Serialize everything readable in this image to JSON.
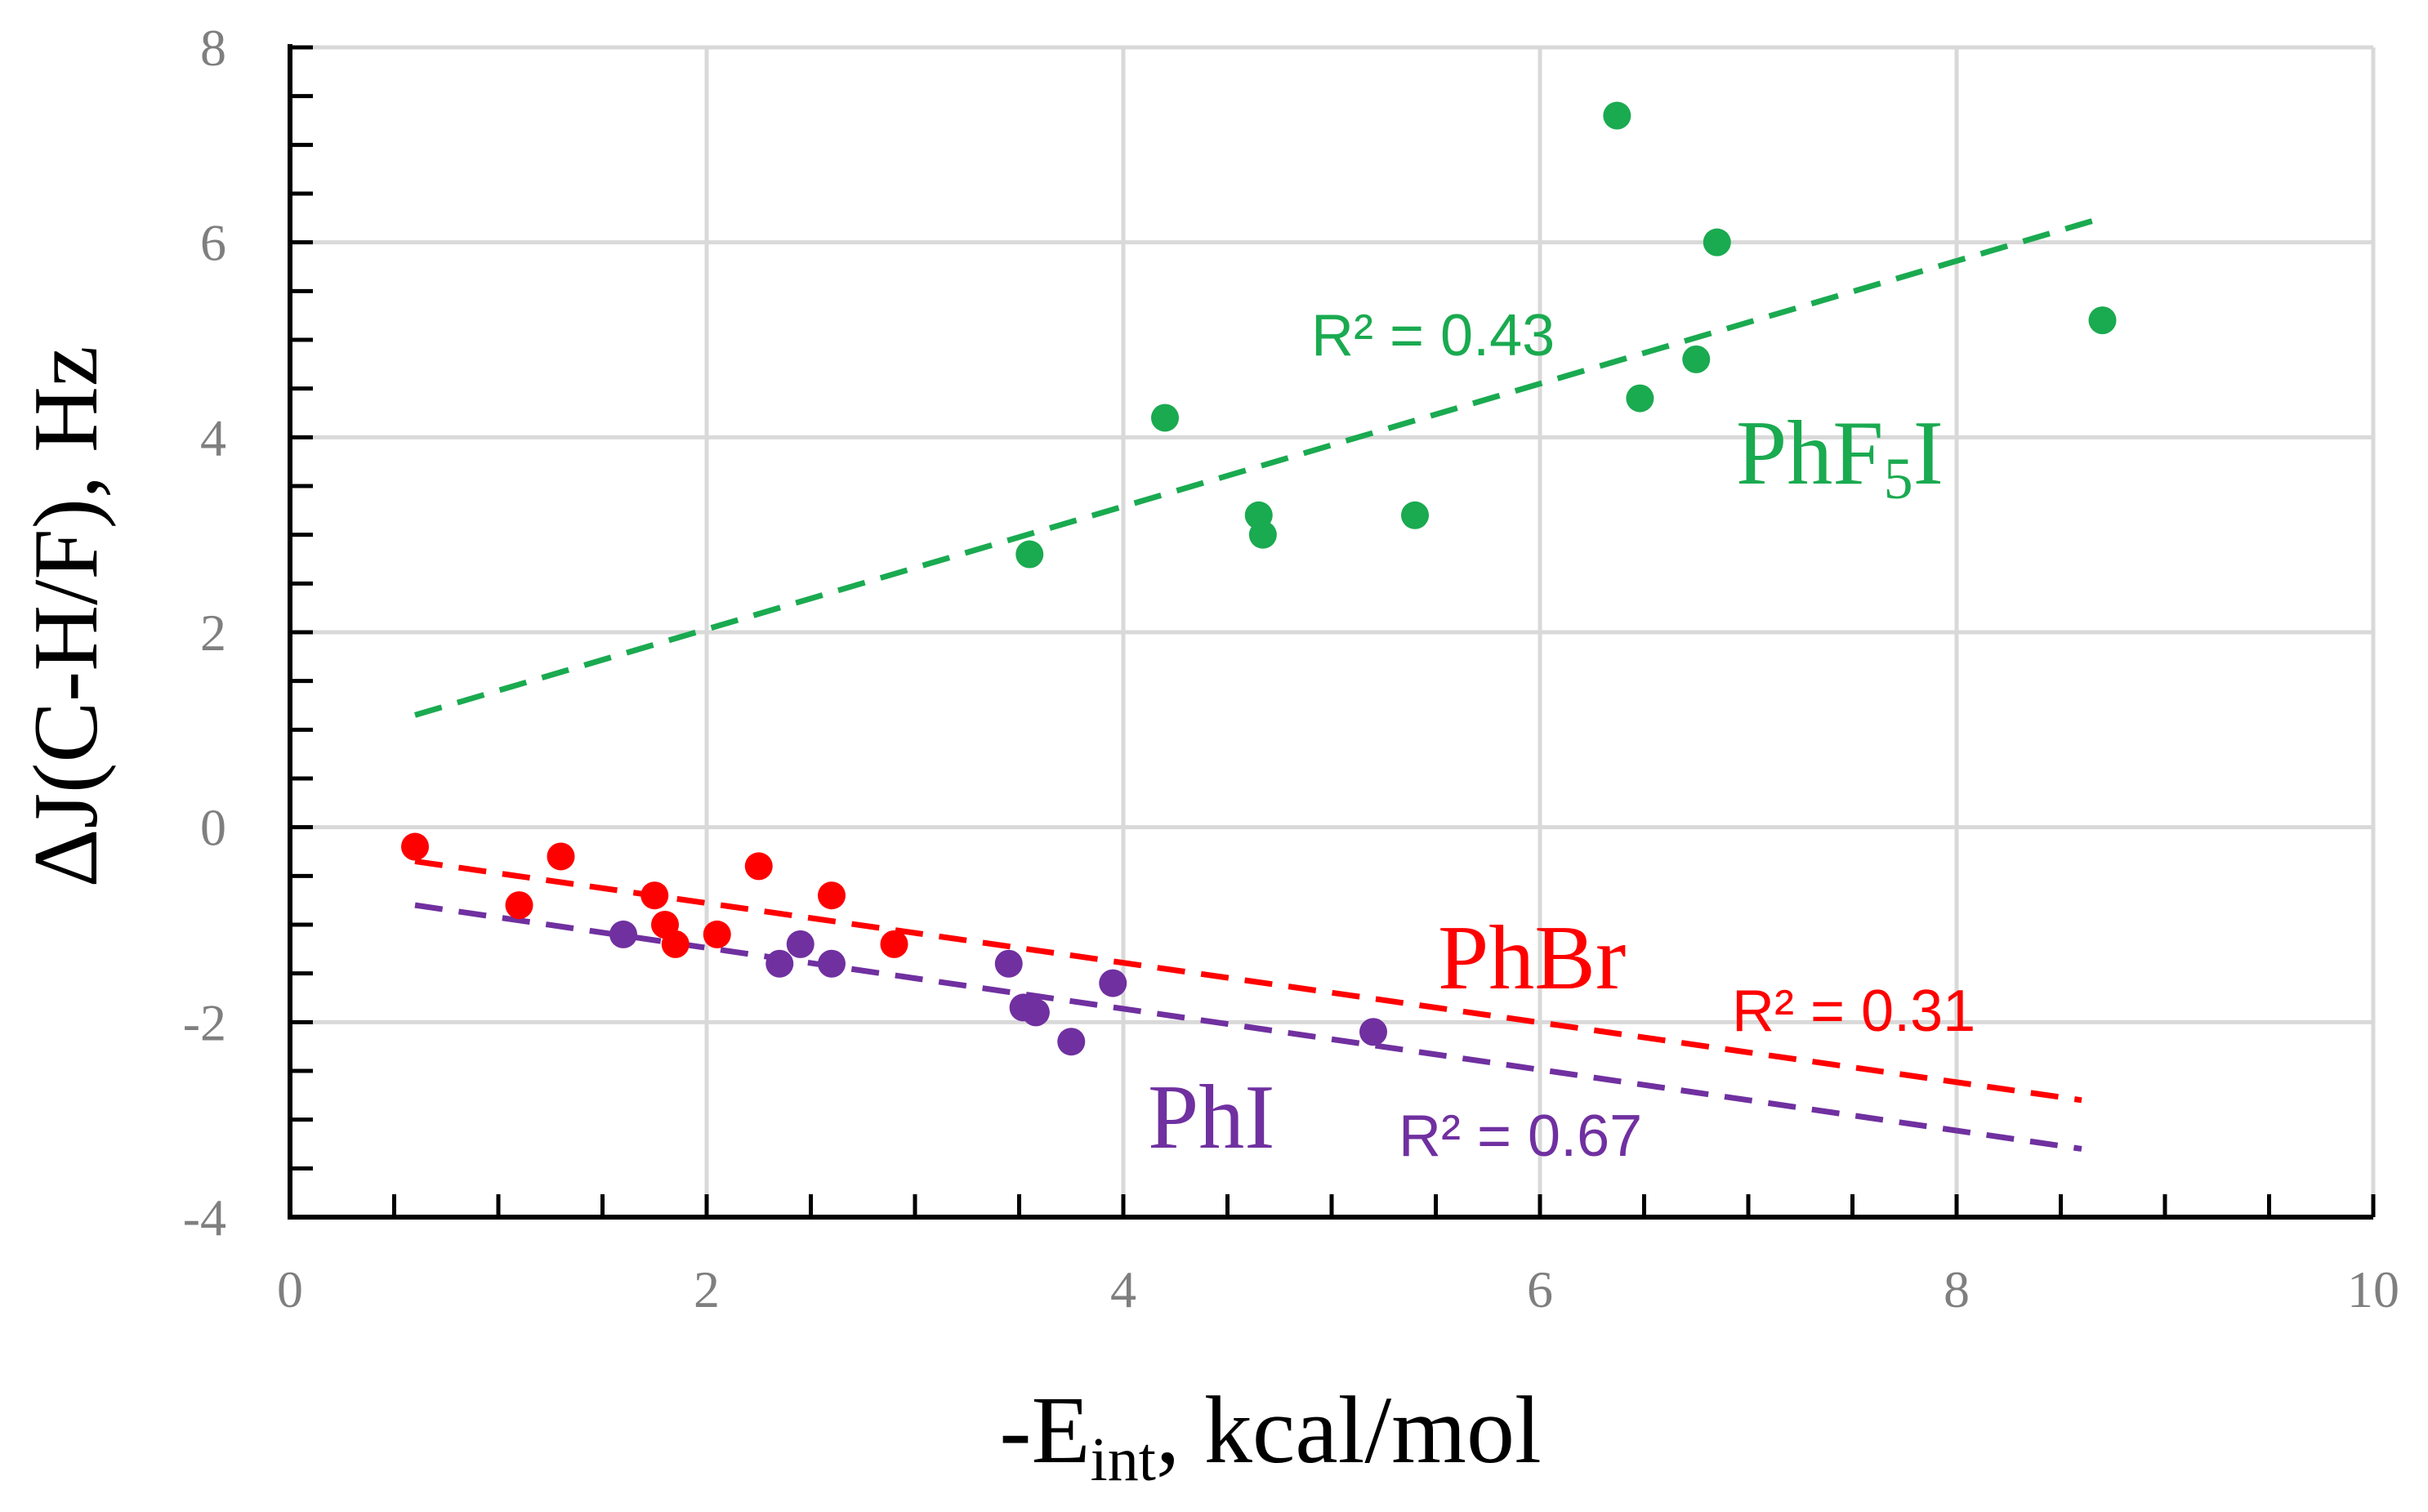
{
  "chart_data": {
    "type": "scatter",
    "title": "",
    "xlabel": "-E",
    "xlabel_sub": "int",
    "xlabel_rest": ", kcal/mol",
    "ylabel": "ΔJ(C-H/F), Hz",
    "xlim": [
      0,
      10
    ],
    "ylim": [
      -4,
      8
    ],
    "x_major_ticks": [
      0,
      2,
      4,
      6,
      8,
      10
    ],
    "y_major_ticks": [
      -4,
      -2,
      0,
      2,
      4,
      6,
      8
    ],
    "x_tick_labels": [
      "0",
      "2",
      "4",
      "6",
      "8",
      "10"
    ],
    "y_tick_labels": [
      "-4",
      "-2",
      "0",
      "2",
      "4",
      "6",
      "8"
    ],
    "grid": true,
    "series": [
      {
        "name": "PhF5I",
        "label_main": "PhF",
        "label_sub": "5",
        "label_end": "I",
        "color": "#1aaa50",
        "points": [
          [
            3.55,
            2.8
          ],
          [
            4.2,
            4.2
          ],
          [
            4.65,
            3.2
          ],
          [
            4.67,
            3.0
          ],
          [
            5.4,
            3.2
          ],
          [
            6.37,
            7.3
          ],
          [
            6.48,
            4.4
          ],
          [
            6.75,
            4.8
          ],
          [
            6.85,
            6.0
          ],
          [
            8.7,
            5.2
          ]
        ],
        "trendline": [
          [
            0.6,
            1.15
          ],
          [
            8.7,
            6.25
          ]
        ],
        "r2_text": "R² = 0.43"
      },
      {
        "name": "PhBr",
        "label_main": "PhBr",
        "color": "#ff0000",
        "points": [
          [
            0.6,
            -0.2
          ],
          [
            1.1,
            -0.8
          ],
          [
            1.3,
            -0.3
          ],
          [
            1.75,
            -0.7
          ],
          [
            1.8,
            -1.0
          ],
          [
            1.85,
            -1.2
          ],
          [
            2.05,
            -1.1
          ],
          [
            2.25,
            -0.4
          ],
          [
            2.6,
            -0.7
          ],
          [
            2.9,
            -1.2
          ]
        ],
        "trendline": [
          [
            0.6,
            -0.35
          ],
          [
            8.6,
            -2.8
          ]
        ],
        "r2_text": "R² = 0.31"
      },
      {
        "name": "PhI",
        "label_main": "PhI",
        "color": "#7030a0",
        "points": [
          [
            1.6,
            -1.1
          ],
          [
            2.35,
            -1.4
          ],
          [
            2.45,
            -1.2
          ],
          [
            2.6,
            -1.4
          ],
          [
            3.45,
            -1.4
          ],
          [
            3.52,
            -1.85
          ],
          [
            3.58,
            -1.9
          ],
          [
            3.75,
            -2.2
          ],
          [
            3.95,
            -1.6
          ],
          [
            5.2,
            -2.1
          ]
        ],
        "trendline": [
          [
            0.6,
            -0.8
          ],
          [
            8.6,
            -3.3
          ]
        ],
        "r2_text": "R² = 0.67"
      }
    ]
  },
  "colors": {
    "axis": "#000000",
    "grid": "#d9d9d9",
    "tick_text": "#7f7f7f"
  }
}
